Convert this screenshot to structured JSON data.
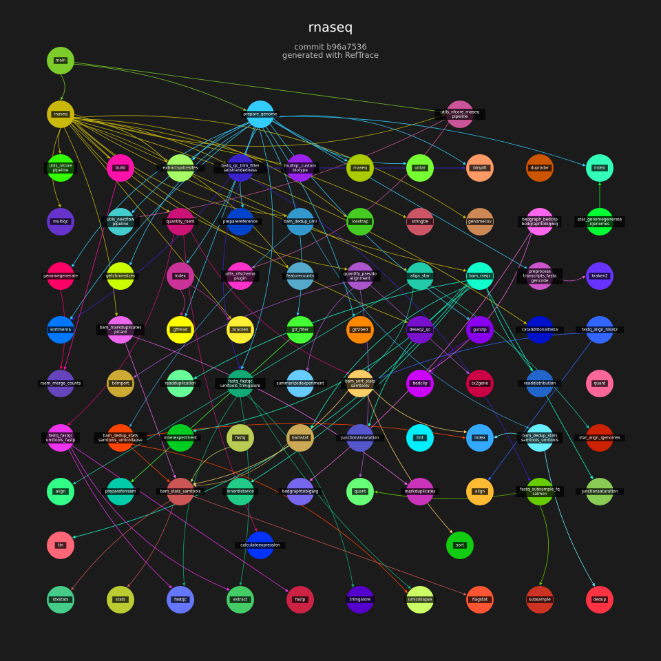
{
  "title": "rnaseq",
  "subtitle_lines": [
    "commit b96a7536",
    "generated with RefTrace"
  ],
  "nodes": [
    {
      "id": "main",
      "lines": [
        "main"
      ],
      "color": "#7ccc2c"
    },
    {
      "id": "rnaseq_wf",
      "lines": [
        "rnaseq"
      ],
      "color": "#c9b80a"
    },
    {
      "id": "prepare_genome",
      "lines": [
        "prepare_genome"
      ],
      "color": "#33ccff"
    },
    {
      "id": "utils_nfcore_rnaseq",
      "lines": [
        "utils_nfcore_rnaseq",
        "pipeline"
      ],
      "color": "#cc5599"
    },
    {
      "id": "utils_nfcore_pipeline",
      "lines": [
        "utils_nfcore",
        "pipeline"
      ],
      "color": "#33ff00"
    },
    {
      "id": "build",
      "lines": [
        "build"
      ],
      "color": "#ff11aa"
    },
    {
      "id": "extractsplicesites",
      "lines": [
        "extractsplicesites"
      ],
      "color": "#a6ff66"
    },
    {
      "id": "fastq_qc_trim_filter",
      "lines": [
        "fastq_qc_trim_filter",
        "setstrandedness"
      ],
      "color": "#3a22cc"
    },
    {
      "id": "multiqc_custom",
      "lines": [
        "multiqc_custom",
        "biotype"
      ],
      "color": "#9922ee"
    },
    {
      "id": "rnaseq_mod",
      "lines": [
        "rnaseq"
      ],
      "color": "#aacc00"
    },
    {
      "id": "untar",
      "lines": [
        "untar"
      ],
      "color": "#77ff33"
    },
    {
      "id": "bbsplit",
      "lines": [
        "bbsplit"
      ],
      "color": "#ff9966"
    },
    {
      "id": "dupradar",
      "lines": [
        "dupradar"
      ],
      "color": "#cc5500"
    },
    {
      "id": "index_top",
      "lines": [
        "index"
      ],
      "color": "#33ffbb"
    },
    {
      "id": "multiqc",
      "lines": [
        "multiqc"
      ],
      "color": "#6633cc"
    },
    {
      "id": "utils_nextflow",
      "lines": [
        "utils_nextflow",
        "pipeline"
      ],
      "color": "#44cccc"
    },
    {
      "id": "quantify_rsem",
      "lines": [
        "quantify_rsem"
      ],
      "color": "#cc1177"
    },
    {
      "id": "preparereference",
      "lines": [
        "preparereference"
      ],
      "color": "#0044cc"
    },
    {
      "id": "bam_dedup_umi",
      "lines": [
        "bam_dedup_umi"
      ],
      "color": "#3399cc"
    },
    {
      "id": "lcextrap",
      "lines": [
        "lcextrap"
      ],
      "color": "#44cc22"
    },
    {
      "id": "stringtie",
      "lines": [
        "stringtie"
      ],
      "color": "#cc5566"
    },
    {
      "id": "genomecov",
      "lines": [
        "genomecov"
      ],
      "color": "#cc8855"
    },
    {
      "id": "bedgraph_bedclip",
      "lines": [
        "bedgraph_bedclip",
        "bedgraphtobigwig"
      ],
      "color": "#ff66ee"
    },
    {
      "id": "star_genomegenerate",
      "lines": [
        "star_genomegenerate",
        "igenomes"
      ],
      "color": "#00ff33"
    },
    {
      "id": "genomegenerate",
      "lines": [
        "genomegenerate"
      ],
      "color": "#ff0066"
    },
    {
      "id": "getchromsizes",
      "lines": [
        "getchromsizes"
      ],
      "color": "#ccff00"
    },
    {
      "id": "index_r3",
      "lines": [
        "index"
      ],
      "color": "#cc3399"
    },
    {
      "id": "utils_nfschema",
      "lines": [
        "utils_nfschema",
        "plugin"
      ],
      "color": "#ff33cc"
    },
    {
      "id": "featurecounts",
      "lines": [
        "featurecounts"
      ],
      "color": "#55aacc"
    },
    {
      "id": "quantify_pseudo",
      "lines": [
        "quantify_pseudo",
        "alignment"
      ],
      "color": "#aa55cc"
    },
    {
      "id": "align_star",
      "lines": [
        "align_star"
      ],
      "color": "#22ccaa"
    },
    {
      "id": "bam_rseqc",
      "lines": [
        "bam_rseqc"
      ],
      "color": "#11ffcc"
    },
    {
      "id": "preprocess_transcripts",
      "lines": [
        "preprocess",
        "transcripts_fasta",
        "gencode"
      ],
      "color": "#cc55cc"
    },
    {
      "id": "kraken2",
      "lines": [
        "kraken2"
      ],
      "color": "#6633ff"
    },
    {
      "id": "sortmerna",
      "lines": [
        "sortmerna"
      ],
      "color": "#0077ff"
    },
    {
      "id": "bam_markduplicates",
      "lines": [
        "bam_markduplicates",
        "picard"
      ],
      "color": "#ee66ee"
    },
    {
      "id": "gffread",
      "lines": [
        "gffread"
      ],
      "color": "#ffff00"
    },
    {
      "id": "bracken",
      "lines": [
        "bracken"
      ],
      "color": "#ffee33"
    },
    {
      "id": "gtf_filter",
      "lines": [
        "gtf_filter"
      ],
      "color": "#44ff33"
    },
    {
      "id": "gtf2bed",
      "lines": [
        "gtf2bed"
      ],
      "color": "#ff8800"
    },
    {
      "id": "deseq2_qc",
      "lines": [
        "deseq2_qc"
      ],
      "color": "#7711cc"
    },
    {
      "id": "gunzip",
      "lines": [
        "gunzip"
      ],
      "color": "#8800ee"
    },
    {
      "id": "catadditionalfasta",
      "lines": [
        "catadditionalfasta"
      ],
      "color": "#0011cc"
    },
    {
      "id": "fastq_align_hisat2",
      "lines": [
        "fastq_align_hisat2"
      ],
      "color": "#3366ff"
    },
    {
      "id": "rsem_merge_counts",
      "lines": [
        "rsem_merge_counts"
      ],
      "color": "#6644bb"
    },
    {
      "id": "tximport",
      "lines": [
        "tximport"
      ],
      "color": "#ccaa33"
    },
    {
      "id": "readduplication",
      "lines": [
        "readduplication"
      ],
      "color": "#66ff99"
    },
    {
      "id": "fastq_fastqc_trimgalore",
      "lines": [
        "fastq_fastqc",
        "umitools_trimgalore"
      ],
      "color": "#11aa77"
    },
    {
      "id": "summarizedexperiment",
      "lines": [
        "summarizedexperiment"
      ],
      "color": "#66ccff"
    },
    {
      "id": "bam_sort_stats_samtools",
      "lines": [
        "bam_sort_stats",
        "samtools"
      ],
      "color": "#ffcc66"
    },
    {
      "id": "bedclip",
      "lines": [
        "bedclip"
      ],
      "color": "#cc00ff"
    },
    {
      "id": "tx2gene",
      "lines": [
        "tx2gene"
      ],
      "color": "#cc0044"
    },
    {
      "id": "readdistribution",
      "lines": [
        "readdistribution"
      ],
      "color": "#2266cc"
    },
    {
      "id": "quant_r6",
      "lines": [
        "quant"
      ],
      "color": "#ff6699"
    },
    {
      "id": "fastq_fastqc_fastp",
      "lines": [
        "fastq_fastqc",
        "umitools_fastp"
      ],
      "color": "#ee33ee"
    },
    {
      "id": "bam_dedup_stats_r7",
      "lines": [
        "bam_dedup_stats",
        "samtools_umicollapse"
      ],
      "color": "#ff4400"
    },
    {
      "id": "innerexperiment",
      "lines": [
        "innerexperiment"
      ],
      "color": "#00cc22"
    },
    {
      "id": "fastq_mod",
      "lines": [
        "fastq"
      ],
      "color": "#bbcc55"
    },
    {
      "id": "bamstat",
      "lines": [
        "bamstat"
      ],
      "color": "#ccaa55"
    },
    {
      "id": "junctionannotation",
      "lines": [
        "junctionannotation"
      ],
      "color": "#5555cc"
    },
    {
      "id": "tint",
      "lines": [
        "tint"
      ],
      "color": "#00eeff"
    },
    {
      "id": "index_r7",
      "lines": [
        "index"
      ],
      "color": "#33aaff"
    },
    {
      "id": "bam_dedup_stats_umitools",
      "lines": [
        "bam_dedup_stats",
        "samtools_umitools"
      ],
      "color": "#66eeff"
    },
    {
      "id": "star_align_igenomes",
      "lines": [
        "star_align_igenomes"
      ],
      "color": "#cc2200"
    },
    {
      "id": "align_r8",
      "lines": [
        "align"
      ],
      "color": "#33ff88"
    },
    {
      "id": "prepareforrsem",
      "lines": [
        "prepareforrsem"
      ],
      "color": "#00ccaa"
    },
    {
      "id": "bam_stats_samtools",
      "lines": [
        "bam_stats_samtools"
      ],
      "color": "#cc5555"
    },
    {
      "id": "innerdistance",
      "lines": [
        "innerdistance"
      ],
      "color": "#22cc88"
    },
    {
      "id": "bedgraphtobigwig",
      "lines": [
        "bedgraphtobigwig"
      ],
      "color": "#7766ee"
    },
    {
      "id": "quant_r8",
      "lines": [
        "quant"
      ],
      "color": "#66ff77"
    },
    {
      "id": "markduplicates",
      "lines": [
        "markduplicates"
      ],
      "color": "#cc33bb"
    },
    {
      "id": "align_r8b",
      "lines": [
        "align"
      ],
      "color": "#ffbb33"
    },
    {
      "id": "fastq_subsample_fq",
      "lines": [
        "fastq_subsample_fq",
        "salmon"
      ],
      "color": "#66cc00"
    },
    {
      "id": "junctionsaturation",
      "lines": [
        "junctionsaturation"
      ],
      "color": "#88cc55"
    },
    {
      "id": "tin",
      "lines": [
        "tin"
      ],
      "color": "#ff6677"
    },
    {
      "id": "calculateexpression",
      "lines": [
        "calculateexpression"
      ],
      "color": "#0033ff"
    },
    {
      "id": "sort",
      "lines": [
        "sort"
      ],
      "color": "#11cc11"
    },
    {
      "id": "idxstats",
      "lines": [
        "idxstats"
      ],
      "color": "#44cc88"
    },
    {
      "id": "stats",
      "lines": [
        "stats"
      ],
      "color": "#bbcc33"
    },
    {
      "id": "fastqc",
      "lines": [
        "fastqc"
      ],
      "color": "#6677ff"
    },
    {
      "id": "extract",
      "lines": [
        "extract"
      ],
      "color": "#44cc66"
    },
    {
      "id": "fastp",
      "lines": [
        "fastp"
      ],
      "color": "#cc2244"
    },
    {
      "id": "trimgalore",
      "lines": [
        "trimgalore"
      ],
      "color": "#5500cc"
    },
    {
      "id": "umicollapse",
      "lines": [
        "umicollapse"
      ],
      "color": "#ccff66"
    },
    {
      "id": "flagstat",
      "lines": [
        "flagstat"
      ],
      "color": "#ff5533"
    },
    {
      "id": "subsample",
      "lines": [
        "subsample"
      ],
      "color": "#cc3322"
    },
    {
      "id": "dedup",
      "lines": [
        "dedup"
      ],
      "color": "#ff3344"
    }
  ],
  "edges": [
    [
      "main",
      "rnaseq_wf"
    ],
    [
      "main",
      "prepare_genome"
    ],
    [
      "main",
      "utils_nfcore_rnaseq"
    ],
    [
      "rnaseq_wf",
      "utils_nfcore_pipeline"
    ],
    [
      "rnaseq_wf",
      "multiqc"
    ],
    [
      "rnaseq_wf",
      "extractsplicesites"
    ],
    [
      "rnaseq_wf",
      "fastq_qc_trim_filter"
    ],
    [
      "rnaseq_wf",
      "multiqc_custom"
    ],
    [
      "rnaseq_wf",
      "quantify_rsem"
    ],
    [
      "rnaseq_wf",
      "bam_dedup_umi"
    ],
    [
      "rnaseq_wf",
      "lcextrap"
    ],
    [
      "rnaseq_wf",
      "stringtie"
    ],
    [
      "rnaseq_wf",
      "align_star"
    ],
    [
      "rnaseq_wf",
      "bam_rseqc"
    ],
    [
      "rnaseq_wf",
      "quantify_pseudo"
    ],
    [
      "rnaseq_wf",
      "featurecounts"
    ],
    [
      "rnaseq_wf",
      "bam_markduplicates"
    ],
    [
      "rnaseq_wf",
      "bracken"
    ],
    [
      "rnaseq_wf",
      "deseq2_qc"
    ],
    [
      "rnaseq_wf",
      "utils_nfcore_rnaseq"
    ],
    [
      "rnaseq_wf",
      "genomecov"
    ],
    [
      "rnaseq_wf",
      "catadditionalfasta"
    ],
    [
      "rnaseq_wf",
      "build"
    ],
    [
      "prepare_genome",
      "extractsplicesites"
    ],
    [
      "prepare_genome",
      "untar"
    ],
    [
      "prepare_genome",
      "bbsplit"
    ],
    [
      "prepare_genome",
      "index_top"
    ],
    [
      "prepare_genome",
      "gffread"
    ],
    [
      "prepare_genome",
      "sortmerna"
    ],
    [
      "prepare_genome",
      "getchromsizes"
    ],
    [
      "prepare_genome",
      "gtf_filter"
    ],
    [
      "prepare_genome",
      "gtf2bed"
    ],
    [
      "prepare_genome",
      "preprocess_transcripts"
    ],
    [
      "prepare_genome",
      "gunzip"
    ],
    [
      "prepare_genome",
      "preparereference"
    ],
    [
      "prepare_genome",
      "fastq_fastqc_trimgalore"
    ],
    [
      "prepare_genome",
      "index_r3"
    ],
    [
      "prepare_genome",
      "rnaseq_mod"
    ],
    [
      "prepare_genome",
      "utils_nextflow"
    ],
    [
      "prepare_genome",
      "genomegenerate"
    ],
    [
      "utils_nfcore_rnaseq",
      "utils_nfschema"
    ],
    [
      "utils_nfcore_rnaseq",
      "utils_nextflow"
    ],
    [
      "build",
      "rsem_merge_counts"
    ],
    [
      "quantify_rsem",
      "calculateexpression"
    ],
    [
      "quantify_rsem",
      "bam_sort_stats_samtools"
    ],
    [
      "quantify_rsem",
      "fastq_fastqc_fastp"
    ],
    [
      "quantify_pseudo",
      "quant_r8"
    ],
    [
      "quantify_pseudo",
      "tx2gene"
    ],
    [
      "quantify_pseudo",
      "tximport"
    ],
    [
      "quantify_pseudo",
      "summarizedexperiment"
    ],
    [
      "align_star",
      "bam_sort_stats_samtools"
    ],
    [
      "align_star",
      "star_align_igenomes"
    ],
    [
      "align_star",
      "align_r8"
    ],
    [
      "bam_rseqc",
      "readdistribution"
    ],
    [
      "bam_rseqc",
      "junctionannotation"
    ],
    [
      "bam_rseqc",
      "tin"
    ],
    [
      "bam_rseqc",
      "innerdistance"
    ],
    [
      "bam_rseqc",
      "junctionsaturation"
    ],
    [
      "bam_rseqc",
      "readduplication"
    ],
    [
      "bam_rseqc",
      "bamstat"
    ],
    [
      "bam_rseqc",
      "innerexperiment"
    ],
    [
      "bam_markduplicates",
      "markduplicates"
    ],
    [
      "bam_markduplicates",
      "bam_stats_samtools"
    ],
    [
      "bam_sort_stats_samtools",
      "sort"
    ],
    [
      "bam_sort_stats_samtools",
      "index_r7"
    ],
    [
      "bam_sort_stats_samtools",
      "bam_stats_samtools"
    ],
    [
      "bam_stats_samtools",
      "stats"
    ],
    [
      "bam_stats_samtools",
      "flagstat"
    ],
    [
      "bam_stats_samtools",
      "idxstats"
    ],
    [
      "fastq_fastqc_trimgalore",
      "fastqc"
    ],
    [
      "fastq_fastqc_trimgalore",
      "trimgalore"
    ],
    [
      "fastq_fastqc_trimgalore",
      "extract"
    ],
    [
      "fastq_fastqc_fastp",
      "fastp"
    ],
    [
      "fastq_fastqc_fastp",
      "fastqc"
    ],
    [
      "fastq_fastqc_fastp",
      "extract"
    ],
    [
      "bam_dedup_stats_r7",
      "umicollapse"
    ],
    [
      "bam_dedup_stats_r7",
      "index_r7"
    ],
    [
      "bam_dedup_stats_r7",
      "bam_stats_samtools"
    ],
    [
      "bam_dedup_stats_umitools",
      "dedup"
    ],
    [
      "bam_dedup_stats_umitools",
      "index_r7"
    ],
    [
      "fastq_subsample_fq",
      "subsample"
    ],
    [
      "fastq_subsample_fq",
      "quant_r8"
    ],
    [
      "fastq_align_hisat2",
      "align_r8b"
    ],
    [
      "fastq_align_hisat2",
      "bam_sort_stats_samtools"
    ],
    [
      "fastq_qc_trim_filter",
      "fastq_fastqc_trimgalore"
    ],
    [
      "fastq_qc_trim_filter",
      "fastq_subsample_fq"
    ],
    [
      "fastq_qc_trim_filter",
      "sortmerna"
    ],
    [
      "fastq_qc_trim_filter",
      "bbsplit"
    ],
    [
      "bam_dedup_umi",
      "bam_dedup_stats_r7"
    ],
    [
      "bam_dedup_umi",
      "bam_dedup_stats_umitools"
    ],
    [
      "bedgraph_bedclip",
      "bedclip"
    ],
    [
      "bedgraph_bedclip",
      "bedgraphtobigwig"
    ],
    [
      "star_genomegenerate",
      "index_top"
    ],
    [
      "fastq_fastqc_trimgalore",
      "umicollapse"
    ],
    [
      "fastq_mod",
      "bam_stats_samtools"
    ],
    [
      "index_r3",
      "gffread"
    ],
    [
      "index_r3",
      "bracken"
    ],
    [
      "gtf_filter",
      "prepareforrsem"
    ],
    [
      "gunzip",
      "bedclip"
    ],
    [
      "preprocess_transcripts",
      "kraken2"
    ],
    [
      "bamstat",
      "bam_stats_samtools"
    ],
    [
      "genomegenerate",
      "rsem_merge_counts"
    ]
  ]
}
